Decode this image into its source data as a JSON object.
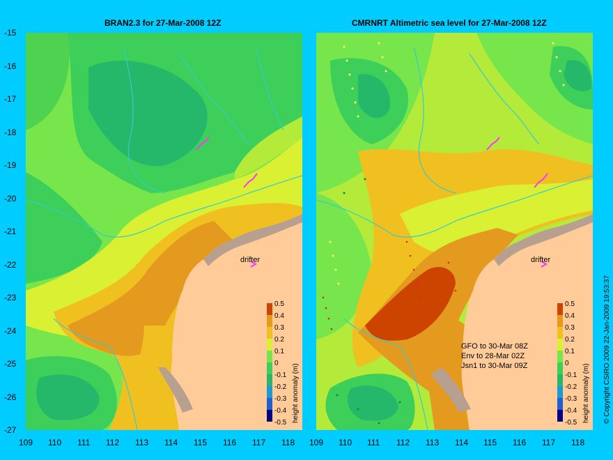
{
  "titles": {
    "left": "BRAN2.3 for 27-Mar-2008 12Z",
    "right": "CMRNRT Altimetric sea level  for 27-Mar-2008 12Z"
  },
  "y_ticks": [
    "-15",
    "-16",
    "-17",
    "-18",
    "-19",
    "-20",
    "-21",
    "-22",
    "-23",
    "-24",
    "-25",
    "-26",
    "-27"
  ],
  "x_ticks": [
    "109",
    "110",
    "111",
    "112",
    "113",
    "114",
    "115",
    "116",
    "117",
    "118"
  ],
  "colorbar": {
    "label": "height anomaly (m)",
    "ticks": [
      "0.5",
      "0.4",
      "0.3",
      "0.2",
      "0.1",
      "0",
      "-0.1",
      "-0.2",
      "-0.3",
      "-0.4",
      "-0.5"
    ]
  },
  "drifter_label": "drifter",
  "satellite_passes": [
    "GFO to 30-Mar 08Z",
    "Env to 28-Mar 02Z",
    "Jsn1 to 30-Mar 09Z"
  ],
  "copyright": "© Copyright CSIRO 2009   22-Jan-2009 19:53:37",
  "colors": {
    "background": "#00ccff",
    "land": "#ffcc99",
    "coast_rock": "#b8a090",
    "contour": "#33cccc",
    "drifter": "#ff33ff"
  }
}
